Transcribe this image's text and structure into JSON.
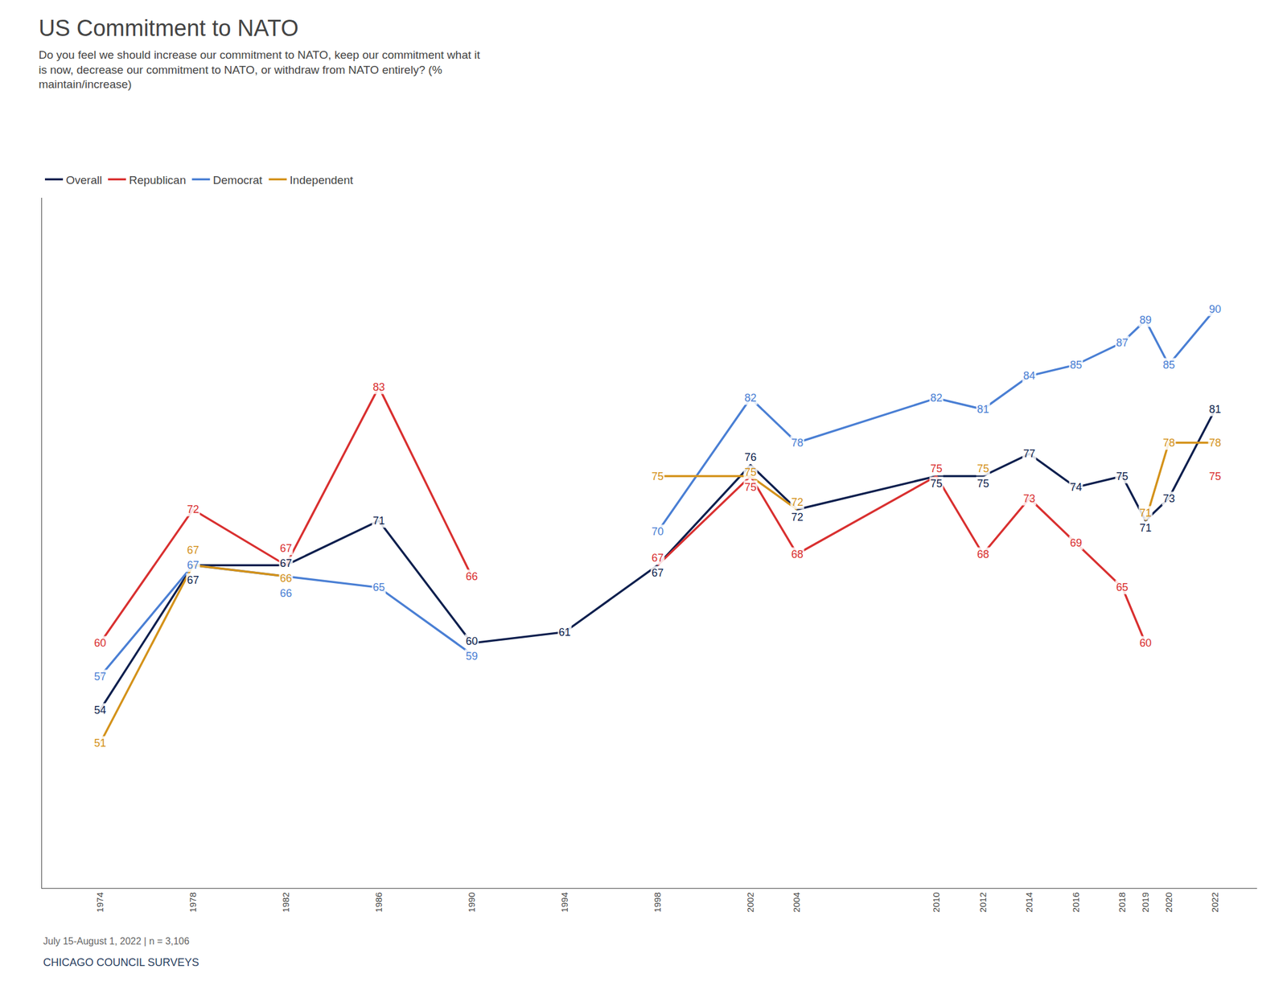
{
  "chart_data": {
    "type": "line",
    "title": "US Commitment to NATO",
    "subtitle": "Do you feel we should increase our commitment to NATO, keep our commitment what it\nis now, decrease our commitment to NATO, or withdraw from NATO entirely? (%\nmaintain/increase)",
    "annotations": [
      "July 15-August 1, 2022 | n = 3,106",
      "CHICAGO COUNCIL SURVEYS"
    ],
    "x": [
      1974,
      1978,
      1982,
      1986,
      1990,
      1994,
      1998,
      2002,
      2004,
      2010,
      2012,
      2014,
      2016,
      2018,
      2019,
      2020,
      2022
    ],
    "series": [
      {
        "name": "Overall",
        "color": "#0d1f4e",
        "values": [
          54,
          67,
          67,
          71,
          60,
          61,
          67,
          76,
          72,
          75,
          75,
          77,
          74,
          75,
          71,
          73,
          81
        ]
      },
      {
        "name": "Republican",
        "color": "#d93030",
        "values": [
          60,
          72,
          67,
          83,
          66,
          null,
          67,
          75,
          68,
          75,
          68,
          73,
          69,
          65,
          60,
          null,
          75
        ]
      },
      {
        "name": "Democrat",
        "color": "#4a7fd4",
        "values": [
          57,
          67,
          66,
          65,
          59,
          null,
          70,
          82,
          78,
          82,
          81,
          84,
          85,
          87,
          89,
          85,
          90
        ]
      },
      {
        "name": "Independent",
        "color": "#d4921a",
        "values": [
          51,
          67,
          66,
          null,
          null,
          null,
          75,
          75,
          72,
          null,
          75,
          null,
          null,
          null,
          71,
          78,
          78
        ]
      }
    ],
    "xlim": [
      1971.5,
      2023.8
    ],
    "xticks": [
      1974,
      1978,
      1982,
      1986,
      1990,
      1994,
      1998,
      2002,
      2004,
      2010,
      2012,
      2014,
      2016,
      2018,
      2019,
      2020,
      2022
    ],
    "ylim": [
      38,
      100
    ],
    "grid": false,
    "data_labels": true,
    "tick_labels": "x"
  }
}
